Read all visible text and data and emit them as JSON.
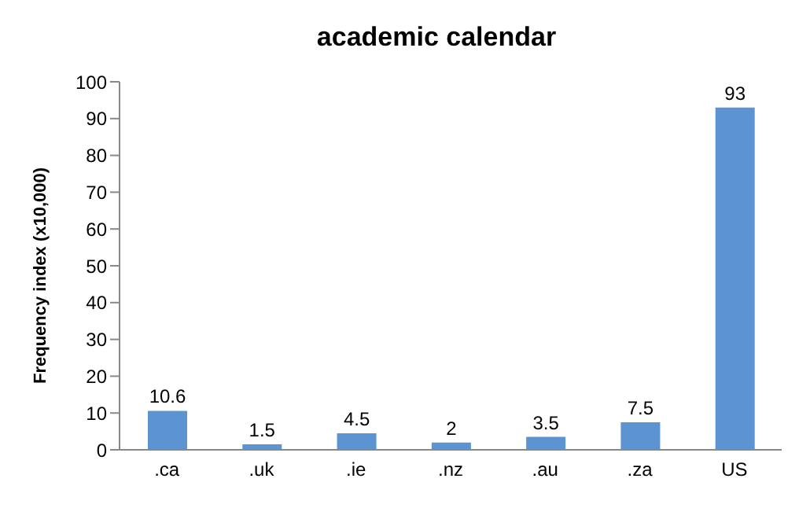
{
  "chart_data": {
    "type": "bar",
    "title": "academic calendar",
    "ylabel": "Frequency index (x10,000)",
    "categories": [
      ".ca",
      ".uk",
      ".ie",
      ".nz",
      ".au",
      ".za",
      "US"
    ],
    "values": [
      10.6,
      1.5,
      4.5,
      2,
      3.5,
      7.5,
      93
    ],
    "color": "#5b94d0",
    "ylim": [
      0,
      100
    ],
    "yticks": [
      0,
      10,
      20,
      30,
      40,
      50,
      60,
      70,
      80,
      90,
      100
    ],
    "grid": false,
    "data_labels": true
  }
}
